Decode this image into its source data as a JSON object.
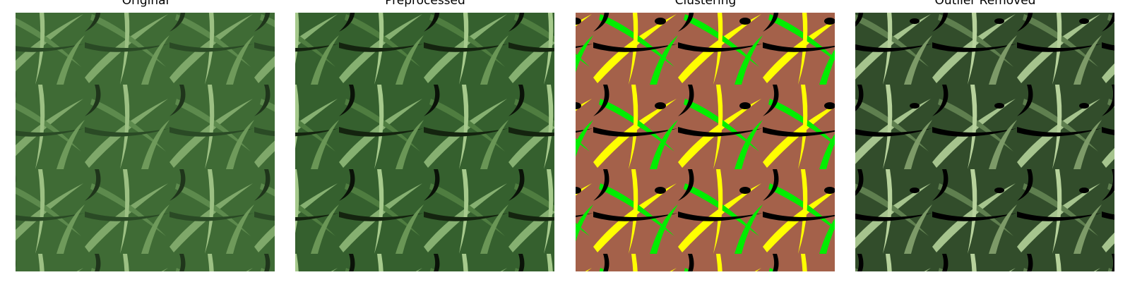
{
  "panels": [
    {
      "title": "Original"
    },
    {
      "title": "Preprocessed"
    },
    {
      "title": "Clustering"
    },
    {
      "title": "Outlier Removed"
    }
  ]
}
